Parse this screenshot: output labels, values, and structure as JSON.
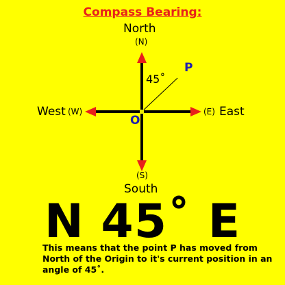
{
  "title": "Compass Bearing:",
  "directions": {
    "north": {
      "name": "North",
      "abbr": "(N)"
    },
    "south": {
      "name": "South",
      "abbr": "(S)"
    },
    "west": {
      "name": "West",
      "abbr": "(W)"
    },
    "east": {
      "name": "East",
      "abbr": "(E)"
    }
  },
  "point_label": "P",
  "origin_label": "O",
  "angle_label": "45˚",
  "bearing_text": "N 45˚ E",
  "explanation": "This means that the point P has moved from North of the Origin to it's current position in an angle of 45˚.",
  "colors": {
    "background": "#ffff00",
    "arrow": "#e8201a",
    "axis": "#000000",
    "point": "#1f1fb0",
    "title": "#e8201a"
  }
}
